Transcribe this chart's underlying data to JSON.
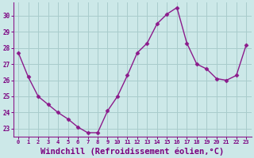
{
  "hours": [
    0,
    1,
    2,
    3,
    4,
    5,
    6,
    7,
    8,
    9,
    10,
    11,
    12,
    13,
    14,
    15,
    16,
    17,
    18,
    19,
    20,
    21,
    22,
    23
  ],
  "values": [
    27.7,
    26.2,
    25.0,
    24.5,
    24.0,
    23.6,
    23.1,
    22.75,
    22.75,
    24.1,
    25.0,
    26.3,
    27.7,
    28.3,
    29.5,
    30.1,
    30.5,
    28.3,
    27.0,
    26.7,
    26.1,
    26.0,
    26.3,
    28.2
  ],
  "line_color": "#8b1a8b",
  "marker": "D",
  "marker_size": 2.5,
  "bg_color": "#cce8e8",
  "grid_color": "#a8cccc",
  "tick_color": "#7b0080",
  "xlabel": "Windchill (Refroidissement éolien,°C)",
  "xlabel_fontsize": 7.5,
  "ylim": [
    22.5,
    30.8
  ],
  "yticks": [
    23,
    24,
    25,
    26,
    27,
    28,
    29,
    30
  ],
  "spine_color": "#8b1a8b"
}
